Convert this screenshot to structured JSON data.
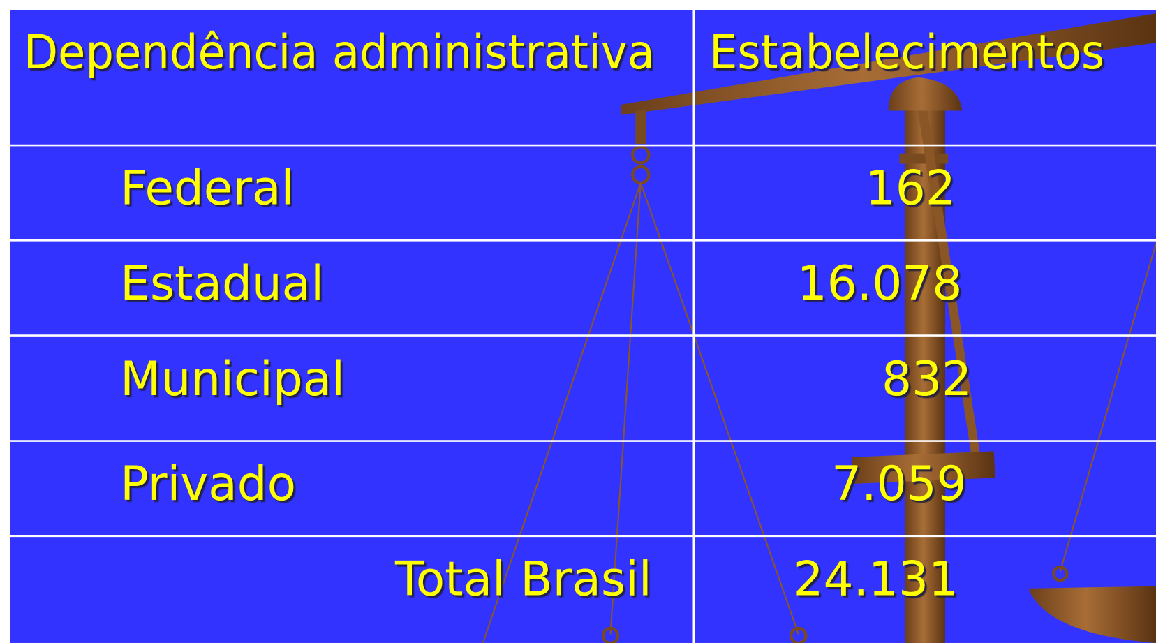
{
  "table": {
    "header": [
      "Dependência administrativa",
      "Estabelecimentos"
    ],
    "rows": [
      [
        "Federal",
        "162"
      ],
      [
        "Estadual",
        "16.078"
      ],
      [
        "Municipal",
        "832"
      ],
      [
        "Privado",
        "7.059"
      ],
      [
        "Total Brasil",
        "24.131"
      ]
    ]
  }
}
